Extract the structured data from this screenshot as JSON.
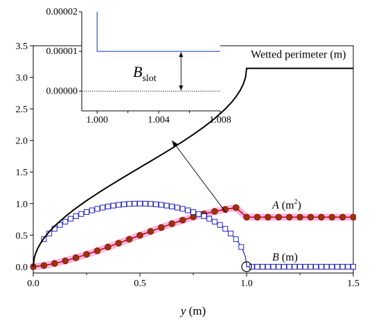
{
  "chart_data": [
    {
      "type": "line",
      "panel": "main",
      "xlabel_var": "y",
      "xlabel_unit": " (m)",
      "xlim": [
        0.0,
        1.5
      ],
      "ylim": [
        -0.1,
        3.5
      ],
      "x_ticks": [
        0.0,
        0.5,
        1.0,
        1.5
      ],
      "x_tick_labels": [
        "0.0",
        "0.5",
        "1.0",
        "1.5"
      ],
      "y_ticks": [
        0.0,
        0.5,
        1.0,
        1.5,
        2.0,
        2.5,
        3.0,
        3.5
      ],
      "y_tick_labels": [
        "0.0",
        "0.5",
        "1.0",
        "1.5",
        "2.0",
        "2.5",
        "3.0",
        "3.5"
      ],
      "series": [
        {
          "name": "Wetted perimeter (m)",
          "color": "#000000",
          "x": [
            0.0,
            0.005,
            0.01,
            0.02,
            0.035,
            0.05,
            0.075,
            0.1,
            0.15,
            0.2,
            0.25,
            0.3,
            0.35,
            0.4,
            0.45,
            0.5,
            0.55,
            0.6,
            0.65,
            0.7,
            0.75,
            0.8,
            0.85,
            0.9,
            0.93,
            0.95,
            0.97,
            0.985,
            0.995,
            1.0,
            1.5
          ],
          "y": [
            0.0,
            0.142,
            0.2,
            0.284,
            0.376,
            0.451,
            0.554,
            0.644,
            0.795,
            0.927,
            1.047,
            1.159,
            1.266,
            1.369,
            1.471,
            1.571,
            1.671,
            1.772,
            1.875,
            1.982,
            2.094,
            2.214,
            2.346,
            2.498,
            2.606,
            2.691,
            2.794,
            2.897,
            3.0,
            3.142,
            3.142
          ]
        },
        {
          "name": "A",
          "name_unit": " (m",
          "name_sup": "2",
          "name_close": ")",
          "color": "#c00000",
          "marker_fill": "#8b3a0f",
          "halo": "#f4b8e4",
          "x": [
            0.0,
            0.05,
            0.1,
            0.15,
            0.2,
            0.25,
            0.3,
            0.35,
            0.4,
            0.45,
            0.5,
            0.55,
            0.6,
            0.65,
            0.7,
            0.75,
            0.8,
            0.85,
            0.9,
            0.95,
            1.0,
            1.05,
            1.1,
            1.15,
            1.2,
            1.25,
            1.3,
            1.35,
            1.4,
            1.45,
            1.5
          ],
          "y": [
            0.0,
            0.019,
            0.052,
            0.093,
            0.142,
            0.196,
            0.252,
            0.312,
            0.373,
            0.435,
            0.497,
            0.559,
            0.621,
            0.681,
            0.737,
            0.789,
            0.836,
            0.876,
            0.908,
            0.935,
            0.785,
            0.785,
            0.785,
            0.785,
            0.785,
            0.785,
            0.785,
            0.785,
            0.785,
            0.785,
            0.785
          ]
        },
        {
          "name": "B",
          "name_unit": " (m)",
          "color": "#2020c0",
          "x": [
            0.0,
            0.001,
            0.005,
            0.01,
            0.02,
            0.035,
            0.05,
            0.075,
            0.1,
            0.15,
            0.2,
            0.25,
            0.3,
            0.35,
            0.4,
            0.45,
            0.5,
            0.55,
            0.6,
            0.65,
            0.7,
            0.75,
            0.8,
            0.85,
            0.9,
            0.925,
            0.95,
            0.965,
            0.98,
            0.99,
            0.995,
            0.999,
            1.0,
            1.5
          ],
          "y": [
            0.0,
            0.063,
            0.141,
            0.199,
            0.28,
            0.368,
            0.436,
            0.527,
            0.6,
            0.714,
            0.8,
            0.866,
            0.917,
            0.954,
            0.98,
            0.995,
            1.0,
            0.995,
            0.98,
            0.954,
            0.917,
            0.866,
            0.8,
            0.714,
            0.6,
            0.527,
            0.436,
            0.368,
            0.28,
            0.199,
            0.141,
            0.063,
            0.0,
            0.0
          ],
          "marker_x": [
            0.05,
            0.075,
            0.1,
            0.125,
            0.15,
            0.175,
            0.2,
            0.225,
            0.25,
            0.275,
            0.3,
            0.325,
            0.35,
            0.375,
            0.4,
            0.425,
            0.45,
            0.475,
            0.5,
            0.525,
            0.55,
            0.575,
            0.6,
            0.625,
            0.65,
            0.675,
            0.7,
            0.725,
            0.75,
            0.775,
            0.8,
            0.825,
            0.85,
            0.875,
            0.9,
            0.925,
            0.95,
            0.975,
            1.025,
            1.05,
            1.075,
            1.1,
            1.125,
            1.15,
            1.175,
            1.2,
            1.225,
            1.25,
            1.275,
            1.3,
            1.325,
            1.35,
            1.375,
            1.4,
            1.425,
            1.45,
            1.475,
            1.5
          ]
        }
      ],
      "annotations": [
        {
          "text": "Wetted perimeter (m)",
          "x": 1.02,
          "y": 3.31
        },
        {
          "text": "A (m2)",
          "x": 1.12,
          "y": 0.92
        },
        {
          "text": "B (m)",
          "x": 1.12,
          "y": 0.1
        }
      ],
      "highlight": {
        "type": "circle",
        "x": 1.0,
        "y": 0.0
      },
      "arrow": {
        "from": [
          0.905,
          0.85
        ],
        "to": [
          0.65,
          2.0
        ]
      }
    },
    {
      "type": "line",
      "panel": "inset",
      "xlim": [
        0.999,
        1.008
      ],
      "ylim": [
        -5e-06,
        2e-05
      ],
      "x_ticks": [
        1.0,
        1.004,
        1.008
      ],
      "x_tick_labels": [
        "1.000",
        "1.004",
        "1.008"
      ],
      "y_ticks": [
        0.0,
        1e-05,
        2e-05
      ],
      "y_tick_labels": [
        "0.00000",
        "0.00001",
        "0.00002"
      ],
      "series": [
        {
          "name": "B",
          "color": "#4a6fd6",
          "x": [
            1.0,
            1.0,
            1.008
          ],
          "y": [
            2e-05,
            1e-05,
            1e-05
          ]
        }
      ],
      "zero_line": {
        "y": 0.0,
        "style": "dotted"
      },
      "dimension": {
        "label_main": "B",
        "label_sub": "slot",
        "x": 1.00545,
        "from_y": 1e-05,
        "to_y": 0.0
      }
    }
  ],
  "main": {
    "xlabel_var": "y",
    "xlabel_unit": " (m)",
    "label_wetted": "Wetted perimeter (m)",
    "label_A": "A",
    "label_A_unit": " (m",
    "label_A_sup": "2",
    "label_A_close": ")",
    "label_B": "B",
    "label_B_unit": " (m)"
  },
  "inset": {
    "label_main": "B",
    "label_sub": "slot"
  }
}
